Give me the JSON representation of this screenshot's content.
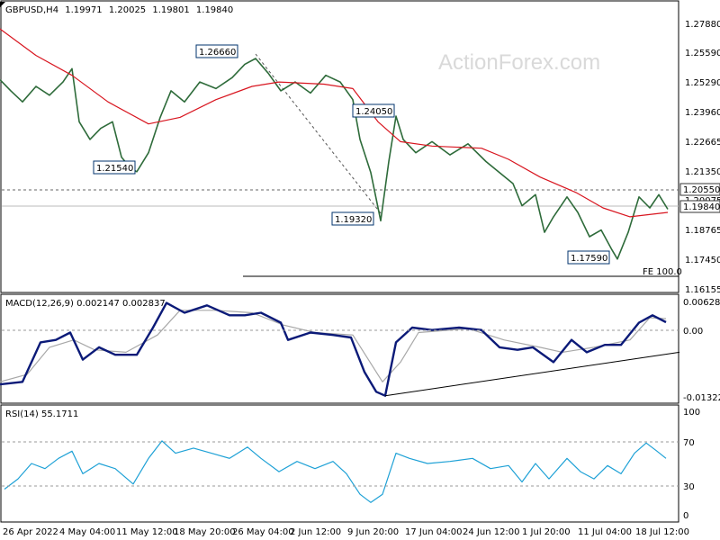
{
  "watermark": "ActionForex.com",
  "price_header": {
    "symbol": "GBPUSD,H4",
    "open": "1.19971",
    "high": "1.20025",
    "low": "1.19801",
    "close": "1.19840"
  },
  "macd_header": "MACD(12,26,9) 0.002147 0.002837",
  "rsi_header": "RSI(14) 55.1711",
  "colors": {
    "candles": "#2e6b3a",
    "sma": "#d8151f",
    "macd_main": "#0b1a78",
    "macd_signal": "#a8a8a8",
    "rsi": "#1ea1d6",
    "trendline": "#000000",
    "projection": "#555555",
    "label_border": "#00336e"
  },
  "price_axis": {
    "ticks": [
      "1.27880",
      "1.25590",
      "1.25290",
      "1.23960",
      "1.22665",
      "1.21350",
      "1.20075",
      "1.18765",
      "1.17450",
      "1.16155"
    ],
    "current_price": "1.19840",
    "level_marker": "1.20550"
  },
  "macd_axis": {
    "ticks": [
      "0.006285",
      "0.00",
      "-0.013223"
    ]
  },
  "rsi_axis": {
    "ticks": [
      "100",
      "70",
      "30",
      "0"
    ]
  },
  "x_axis": {
    "labels": [
      "26 Apr 2022",
      "4 May 04:00",
      "11 May 12:00",
      "18 May 20:00",
      "26 May 04:00",
      "2 Jun 12:00",
      "9 Jun 20:00",
      "17 Jun 04:00",
      "24 Jun 12:00",
      "1 Jul 20:00",
      "11 Jul 04:00",
      "18 Jul 12:00"
    ]
  },
  "annotations": {
    "high_1": "1.26660",
    "low_1": "1.21540",
    "high_2": "1.24050",
    "low_2": "1.19320",
    "low_3": "1.17590",
    "level_1": "1.20550",
    "fe_label": "FE 100.0"
  },
  "chart_data": {
    "type": "line",
    "title": "GBPUSD,H4",
    "price_ylim": [
      1.16155,
      1.2825
    ],
    "price_series": [
      {
        "x": 0,
        "y": 1.257
      },
      {
        "x": 12,
        "y": 1.252
      },
      {
        "x": 25,
        "y": 1.247
      },
      {
        "x": 40,
        "y": 1.254
      },
      {
        "x": 55,
        "y": 1.25
      },
      {
        "x": 70,
        "y": 1.256
      },
      {
        "x": 80,
        "y": 1.262
      },
      {
        "x": 88,
        "y": 1.238
      },
      {
        "x": 100,
        "y": 1.23
      },
      {
        "x": 112,
        "y": 1.235
      },
      {
        "x": 125,
        "y": 1.238
      },
      {
        "x": 135,
        "y": 1.222
      },
      {
        "x": 145,
        "y": 1.217
      },
      {
        "x": 152,
        "y": 1.2154
      },
      {
        "x": 165,
        "y": 1.224
      },
      {
        "x": 178,
        "y": 1.24
      },
      {
        "x": 190,
        "y": 1.252
      },
      {
        "x": 205,
        "y": 1.247
      },
      {
        "x": 222,
        "y": 1.256
      },
      {
        "x": 240,
        "y": 1.253
      },
      {
        "x": 258,
        "y": 1.258
      },
      {
        "x": 272,
        "y": 1.264
      },
      {
        "x": 284,
        "y": 1.2666
      },
      {
        "x": 298,
        "y": 1.26
      },
      {
        "x": 312,
        "y": 1.252
      },
      {
        "x": 328,
        "y": 1.256
      },
      {
        "x": 345,
        "y": 1.251
      },
      {
        "x": 362,
        "y": 1.259
      },
      {
        "x": 378,
        "y": 1.256
      },
      {
        "x": 392,
        "y": 1.248
      },
      {
        "x": 400,
        "y": 1.23
      },
      {
        "x": 412,
        "y": 1.215
      },
      {
        "x": 423,
        "y": 1.1932
      },
      {
        "x": 432,
        "y": 1.22
      },
      {
        "x": 440,
        "y": 1.2405
      },
      {
        "x": 448,
        "y": 1.23
      },
      {
        "x": 462,
        "y": 1.224
      },
      {
        "x": 480,
        "y": 1.229
      },
      {
        "x": 500,
        "y": 1.223
      },
      {
        "x": 520,
        "y": 1.228
      },
      {
        "x": 540,
        "y": 1.22
      },
      {
        "x": 555,
        "y": 1.215
      },
      {
        "x": 570,
        "y": 1.21
      },
      {
        "x": 580,
        "y": 1.2
      },
      {
        "x": 595,
        "y": 1.205
      },
      {
        "x": 605,
        "y": 1.188
      },
      {
        "x": 615,
        "y": 1.195
      },
      {
        "x": 630,
        "y": 1.204
      },
      {
        "x": 642,
        "y": 1.197
      },
      {
        "x": 655,
        "y": 1.186
      },
      {
        "x": 668,
        "y": 1.189
      },
      {
        "x": 680,
        "y": 1.18
      },
      {
        "x": 686,
        "y": 1.1759
      },
      {
        "x": 698,
        "y": 1.188
      },
      {
        "x": 710,
        "y": 1.204
      },
      {
        "x": 722,
        "y": 1.199
      },
      {
        "x": 732,
        "y": 1.205
      },
      {
        "x": 742,
        "y": 1.1984
      }
    ],
    "sma_series": [
      {
        "x": 0,
        "y": 1.28
      },
      {
        "x": 40,
        "y": 1.268
      },
      {
        "x": 80,
        "y": 1.259
      },
      {
        "x": 120,
        "y": 1.247
      },
      {
        "x": 165,
        "y": 1.237
      },
      {
        "x": 200,
        "y": 1.24
      },
      {
        "x": 240,
        "y": 1.248
      },
      {
        "x": 280,
        "y": 1.254
      },
      {
        "x": 310,
        "y": 1.256
      },
      {
        "x": 360,
        "y": 1.255
      },
      {
        "x": 392,
        "y": 1.253
      },
      {
        "x": 420,
        "y": 1.238
      },
      {
        "x": 445,
        "y": 1.229
      },
      {
        "x": 480,
        "y": 1.227
      },
      {
        "x": 535,
        "y": 1.226
      },
      {
        "x": 565,
        "y": 1.221
      },
      {
        "x": 600,
        "y": 1.213
      },
      {
        "x": 640,
        "y": 1.206
      },
      {
        "x": 670,
        "y": 1.199
      },
      {
        "x": 700,
        "y": 1.195
      },
      {
        "x": 742,
        "y": 1.197
      }
    ],
    "macd_ylim": [
      -0.013223,
      0.006285
    ],
    "macd_main": [
      {
        "x": 0,
        "y": -0.0105
      },
      {
        "x": 25,
        "y": -0.01
      },
      {
        "x": 45,
        "y": -0.002
      },
      {
        "x": 62,
        "y": -0.0015
      },
      {
        "x": 78,
        "y": 0.0
      },
      {
        "x": 92,
        "y": -0.0055
      },
      {
        "x": 110,
        "y": -0.003
      },
      {
        "x": 128,
        "y": -0.0045
      },
      {
        "x": 152,
        "y": -0.0045
      },
      {
        "x": 170,
        "y": 0.001
      },
      {
        "x": 185,
        "y": 0.006
      },
      {
        "x": 205,
        "y": 0.004
      },
      {
        "x": 230,
        "y": 0.0055
      },
      {
        "x": 255,
        "y": 0.0035
      },
      {
        "x": 272,
        "y": 0.0035
      },
      {
        "x": 290,
        "y": 0.004
      },
      {
        "x": 312,
        "y": 0.002
      },
      {
        "x": 320,
        "y": -0.0015
      },
      {
        "x": 345,
        "y": 0.0
      },
      {
        "x": 370,
        "y": -0.0005
      },
      {
        "x": 390,
        "y": -0.001
      },
      {
        "x": 405,
        "y": -0.008
      },
      {
        "x": 418,
        "y": -0.012
      },
      {
        "x": 428,
        "y": -0.0128
      },
      {
        "x": 440,
        "y": -0.002
      },
      {
        "x": 458,
        "y": 0.001
      },
      {
        "x": 480,
        "y": 0.0005
      },
      {
        "x": 510,
        "y": 0.001
      },
      {
        "x": 535,
        "y": 0.0005
      },
      {
        "x": 555,
        "y": -0.003
      },
      {
        "x": 575,
        "y": -0.0035
      },
      {
        "x": 592,
        "y": -0.003
      },
      {
        "x": 615,
        "y": -0.006
      },
      {
        "x": 635,
        "y": -0.0015
      },
      {
        "x": 652,
        "y": -0.004
      },
      {
        "x": 672,
        "y": -0.0025
      },
      {
        "x": 690,
        "y": -0.0025
      },
      {
        "x": 710,
        "y": 0.002
      },
      {
        "x": 725,
        "y": 0.0035
      },
      {
        "x": 740,
        "y": 0.0021
      }
    ],
    "macd_signal": [
      {
        "x": 0,
        "y": -0.01
      },
      {
        "x": 30,
        "y": -0.0085
      },
      {
        "x": 55,
        "y": -0.003
      },
      {
        "x": 82,
        "y": -0.0015
      },
      {
        "x": 105,
        "y": -0.0035
      },
      {
        "x": 140,
        "y": -0.004
      },
      {
        "x": 175,
        "y": -0.0005
      },
      {
        "x": 200,
        "y": 0.0045
      },
      {
        "x": 240,
        "y": 0.0045
      },
      {
        "x": 280,
        "y": 0.004
      },
      {
        "x": 315,
        "y": 0.0015
      },
      {
        "x": 350,
        "y": 0.0
      },
      {
        "x": 392,
        "y": -0.0005
      },
      {
        "x": 425,
        "y": -0.01
      },
      {
        "x": 445,
        "y": -0.006
      },
      {
        "x": 465,
        "y": 0.0
      },
      {
        "x": 520,
        "y": 0.0008
      },
      {
        "x": 560,
        "y": -0.0015
      },
      {
        "x": 600,
        "y": -0.003
      },
      {
        "x": 625,
        "y": -0.004
      },
      {
        "x": 660,
        "y": -0.003
      },
      {
        "x": 700,
        "y": -0.0015
      },
      {
        "x": 722,
        "y": 0.003
      },
      {
        "x": 740,
        "y": 0.0028
      }
    ],
    "macd_trendline": [
      {
        "x": 428,
        "y": -0.0128
      },
      {
        "x": 755,
        "y": -0.004
      }
    ],
    "rsi_ylim": [
      0,
      100
    ],
    "rsi_levels": [
      70,
      30
    ],
    "rsi_series": [
      {
        "x": 5,
        "y": 25
      },
      {
        "x": 20,
        "y": 35
      },
      {
        "x": 35,
        "y": 50
      },
      {
        "x": 50,
        "y": 45
      },
      {
        "x": 65,
        "y": 55
      },
      {
        "x": 80,
        "y": 62
      },
      {
        "x": 92,
        "y": 40
      },
      {
        "x": 110,
        "y": 50
      },
      {
        "x": 128,
        "y": 45
      },
      {
        "x": 148,
        "y": 30
      },
      {
        "x": 165,
        "y": 55
      },
      {
        "x": 180,
        "y": 72
      },
      {
        "x": 195,
        "y": 60
      },
      {
        "x": 215,
        "y": 65
      },
      {
        "x": 235,
        "y": 60
      },
      {
        "x": 255,
        "y": 55
      },
      {
        "x": 275,
        "y": 66
      },
      {
        "x": 290,
        "y": 55
      },
      {
        "x": 310,
        "y": 42
      },
      {
        "x": 330,
        "y": 52
      },
      {
        "x": 350,
        "y": 45
      },
      {
        "x": 370,
        "y": 52
      },
      {
        "x": 385,
        "y": 40
      },
      {
        "x": 400,
        "y": 20
      },
      {
        "x": 412,
        "y": 12
      },
      {
        "x": 425,
        "y": 20
      },
      {
        "x": 440,
        "y": 60
      },
      {
        "x": 455,
        "y": 55
      },
      {
        "x": 475,
        "y": 50
      },
      {
        "x": 500,
        "y": 52
      },
      {
        "x": 525,
        "y": 55
      },
      {
        "x": 545,
        "y": 45
      },
      {
        "x": 565,
        "y": 48
      },
      {
        "x": 580,
        "y": 32
      },
      {
        "x": 595,
        "y": 50
      },
      {
        "x": 610,
        "y": 35
      },
      {
        "x": 630,
        "y": 55
      },
      {
        "x": 645,
        "y": 42
      },
      {
        "x": 660,
        "y": 35
      },
      {
        "x": 675,
        "y": 48
      },
      {
        "x": 690,
        "y": 40
      },
      {
        "x": 705,
        "y": 60
      },
      {
        "x": 718,
        "y": 70
      },
      {
        "x": 730,
        "y": 62
      },
      {
        "x": 740,
        "y": 55
      }
    ]
  }
}
